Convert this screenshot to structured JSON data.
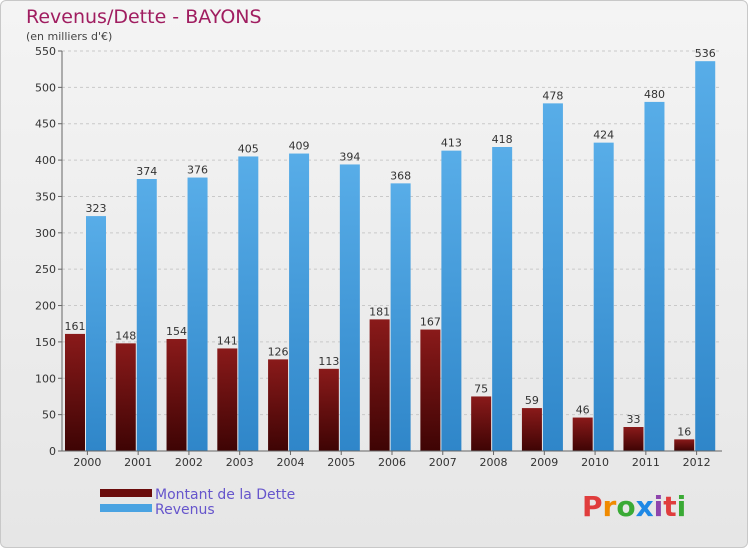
{
  "chart_data": {
    "type": "bar",
    "title": "Revenus/Dette - BAYONS",
    "subtitle": "(en milliers d'€)",
    "categories": [
      "2000",
      "2001",
      "2002",
      "2003",
      "2004",
      "2005",
      "2006",
      "2007",
      "2008",
      "2009",
      "2010",
      "2011",
      "2012"
    ],
    "series": [
      {
        "name": "Montant de la Dette",
        "color": "#6b0c0c",
        "values": [
          161,
          148,
          154,
          141,
          126,
          113,
          181,
          167,
          75,
          59,
          46,
          33,
          16
        ]
      },
      {
        "name": "Revenus",
        "color": "#4aa3e2",
        "values": [
          323,
          374,
          376,
          405,
          409,
          394,
          368,
          413,
          418,
          478,
          424,
          480,
          536
        ]
      }
    ],
    "yticks": [
      0,
      50,
      100,
      150,
      200,
      250,
      300,
      350,
      400,
      450,
      500,
      550
    ],
    "ylim": [
      0,
      550
    ],
    "grid": true,
    "legend_position": "bottom-left"
  },
  "brand": {
    "text": "Proxiti",
    "letters": [
      "P",
      "r",
      "o",
      "x",
      "i",
      "t",
      "i"
    ]
  }
}
